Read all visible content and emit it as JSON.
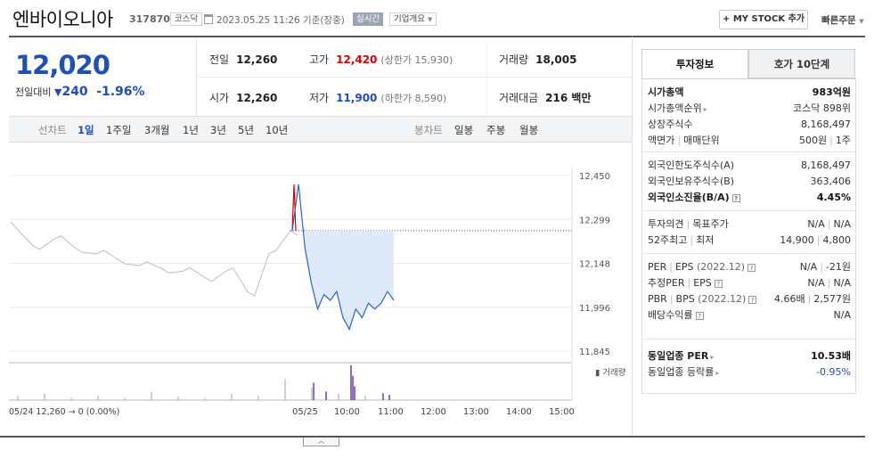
{
  "header": {
    "company_name": "엔바이오니아",
    "code": "317870",
    "market": "코스닥",
    "datetime": "2023.05.25 11:26 기준(장중)",
    "realtime_label": "실시간",
    "overview_label": "기업개요",
    "mystock_label": "+ MY STOCK 추가",
    "quick_order_label": "빠른주문"
  },
  "price": {
    "current": "12,020",
    "change_label": "전일대비",
    "change_arrow": "▼",
    "change_value": "240",
    "change_rate": "-1.96%",
    "color_down": "#1f4fb8",
    "color_up": "#dd0000"
  },
  "quote": {
    "prev_close": {
      "label": "전일",
      "value": "12,260"
    },
    "high": {
      "label": "고가",
      "value": "12,420",
      "sub": "(상한가 15,930)"
    },
    "volume": {
      "label": "거래량",
      "value": "18,005"
    },
    "open": {
      "label": "시가",
      "value": "12,260"
    },
    "low": {
      "label": "저가",
      "value": "11,900",
      "sub": "(하한가 8,590)"
    },
    "amount": {
      "label": "거래대금",
      "value": "216 백만"
    }
  },
  "period_bar": {
    "line_label": "선차트",
    "line_options": [
      "1일",
      "1주일",
      "3개월",
      "1년",
      "3년",
      "5년",
      "10년"
    ],
    "selected": "1일",
    "candle_label": "봉차트",
    "candle_options": [
      "일봉",
      "주봉",
      "월봉"
    ]
  },
  "panel": {
    "tabs": [
      "투자정보",
      "호가 10단계"
    ],
    "active_tab": "투자정보",
    "sections": [
      [
        {
          "k": "시가총액",
          "v": "983억원",
          "bold": true
        },
        {
          "k": "시가총액순위",
          "v": "코스닥 898위",
          "caret": true
        },
        {
          "k": "상장주식수",
          "v": "8,168,497"
        },
        {
          "k": "액면가",
          "k2": "매매단위",
          "v": "500원",
          "v2": "1주"
        }
      ],
      [
        {
          "k": "외국인한도주식수(A)",
          "v": "8,168,497"
        },
        {
          "k": "외국인보유주식수(B)",
          "v": "363,406"
        },
        {
          "k": "외국인소진율(B/A)",
          "v": "4.45%",
          "bold": true,
          "qm": true
        }
      ],
      [
        {
          "k": "투자의견",
          "k2": "목표주가",
          "v": "N/A",
          "v2": "N/A"
        },
        {
          "k": "52주최고",
          "k2": "최저",
          "v": "14,900",
          "v2": "4,800"
        }
      ],
      [
        {
          "k": "PER",
          "k2": "EPS",
          "note": "(2022.12)",
          "qm": true,
          "v": "N/A",
          "v2": "-21원"
        },
        {
          "k": "추정PER",
          "k2": "EPS",
          "qm": true,
          "v": "N/A",
          "v2": "N/A"
        },
        {
          "k": "PBR",
          "k2": "BPS",
          "note": "(2022.12)",
          "qm": true,
          "v": "4.66배",
          "v2": "2,577원"
        },
        {
          "k": "배당수익률",
          "qm": true,
          "v": "N/A"
        }
      ],
      [
        {
          "k": "동일업종 PER",
          "v": "10.53배",
          "bold": true,
          "caret": true
        },
        {
          "k": "동일업종 등락률",
          "v": "-0.95%",
          "caret": true,
          "blue": true
        }
      ]
    ]
  },
  "chart_data": {
    "type": "line",
    "title": "",
    "y_ticks": [
      "12,450",
      "12,299",
      "12,148",
      "11,996",
      "11,845"
    ],
    "ylim": [
      11845,
      12450
    ],
    "x_ticks": [
      "05/25",
      "10:00",
      "11:00",
      "12:00",
      "13:00",
      "14:00",
      "15:00"
    ],
    "prev_day_label": "05/24  12,260 → 0 (0.00%)",
    "volume_label": "거래량",
    "prev_close": 12260,
    "series": [
      {
        "period": "prev-day",
        "color": "#bdbdbd",
        "x": [
          "05/24 09:00",
          "05/24 09:30",
          "05/24 10:00",
          "05/24 10:30",
          "05/24 11:00",
          "05/24 11:30",
          "05/24 12:00",
          "05/24 12:30",
          "05/24 13:00",
          "05/24 13:30",
          "05/24 14:00",
          "05/24 14:30",
          "05/24 15:00",
          "05/24 15:20"
        ],
        "values": [
          12290,
          12210,
          12230,
          12200,
          12180,
          12160,
          12140,
          12130,
          12120,
          12100,
          12120,
          12050,
          12180,
          12260
        ]
      },
      {
        "period": "05/25",
        "color": "#2a64c8",
        "x": [
          "09:00",
          "09:01",
          "09:05",
          "09:15",
          "09:25",
          "09:35",
          "09:45",
          "09:55",
          "10:05",
          "10:15",
          "10:25",
          "10:35",
          "10:45",
          "10:55",
          "11:05",
          "11:15",
          "11:26"
        ],
        "values": [
          12260,
          12420,
          12200,
          12080,
          11990,
          12040,
          12020,
          12050,
          11960,
          11920,
          11990,
          11960,
          12010,
          11990,
          12010,
          12050,
          12020
        ]
      }
    ],
    "volume": {
      "note": "per-interval volume spikes (relative)",
      "values": [
        0.2,
        0.3,
        0.1,
        0.2,
        0.1,
        0.4,
        0.15,
        0.1,
        0.3,
        0.2,
        1.0,
        0.6,
        0.3,
        0.2
      ]
    }
  }
}
